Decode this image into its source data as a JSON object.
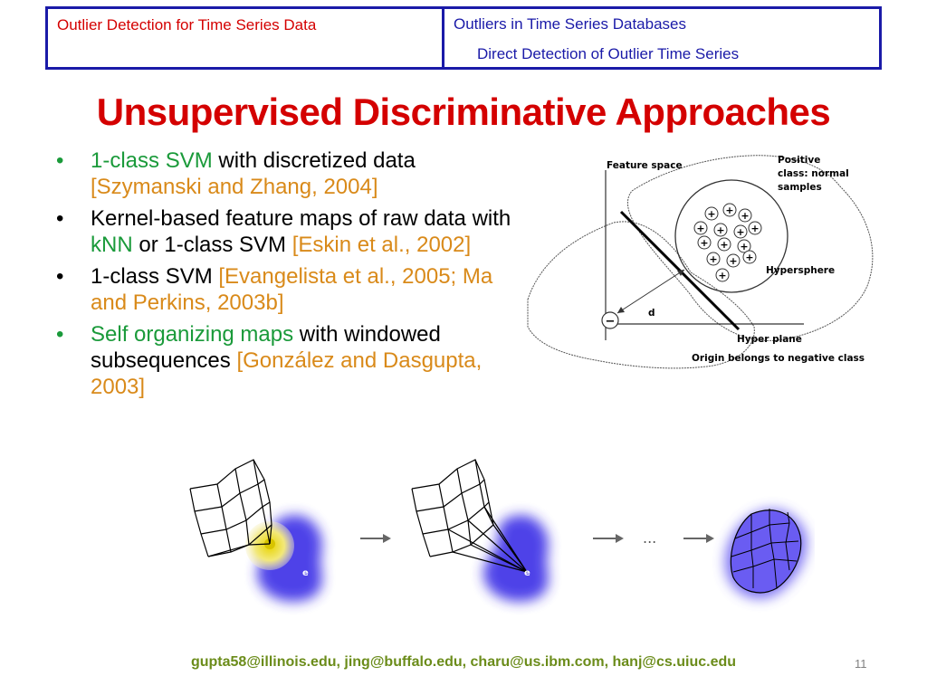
{
  "header": {
    "left": "Outlier Detection for Time Series Data",
    "right_line1": "Outliers in Time Series Databases",
    "right_line2": "Direct Detection of Outlier Time Series"
  },
  "title": "Unsupervised Discriminative Approaches",
  "bullets": [
    {
      "dot_color": "green",
      "parts": [
        {
          "text": "1-class SVM",
          "color": "green"
        },
        {
          "text": " with discretized data ",
          "color": "black"
        },
        {
          "text": "[Szymanski and Zhang, 2004]",
          "color": "orange"
        }
      ]
    },
    {
      "dot_color": "black",
      "parts": [
        {
          "text": "Kernel-based feature maps of raw data with ",
          "color": "black"
        },
        {
          "text": "kNN",
          "color": "green"
        },
        {
          "text": " or 1-class SVM ",
          "color": "black"
        },
        {
          "text": "[Eskin et al., 2002]",
          "color": "orange"
        }
      ]
    },
    {
      "dot_color": "black",
      "parts": [
        {
          "text": "1-class SVM ",
          "color": "black"
        },
        {
          "text": "[Evangelista et al., 2005; Ma and Perkins, 2003b]",
          "color": "orange"
        }
      ]
    },
    {
      "dot_color": "green",
      "parts": [
        {
          "text": "Self organizing maps",
          "color": "green"
        },
        {
          "text": " with windowed subsequences ",
          "color": "black"
        },
        {
          "text": "[González and Dasgupta, 2003]",
          "color": "orange"
        }
      ]
    }
  ],
  "svm_figure": {
    "feature_space": "Feature space",
    "positive_class_line1": "Positive",
    "positive_class_line2": "class: normal",
    "positive_class_line3": "samples",
    "hypersphere": "Hypersphere",
    "distance": "d",
    "hyper_plane": "Hyper plane",
    "origin": "Origin belongs to negative class",
    "plus": "+",
    "minus": "−"
  },
  "som_figure": {
    "ellipsis": "...",
    "e_label": "e"
  },
  "footer": "gupta58@illinois.edu, jing@buffalo.edu, charu@us.ibm.com, hanj@cs.uiuc.edu",
  "page_number": "11"
}
